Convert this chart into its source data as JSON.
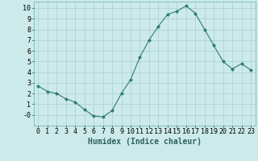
{
  "x": [
    0,
    1,
    2,
    3,
    4,
    5,
    6,
    7,
    8,
    9,
    10,
    11,
    12,
    13,
    14,
    15,
    16,
    17,
    18,
    19,
    20,
    21,
    22,
    23
  ],
  "y": [
    2.7,
    2.2,
    2.0,
    1.5,
    1.2,
    0.5,
    -0.1,
    -0.2,
    0.4,
    2.0,
    3.3,
    5.4,
    7.0,
    8.3,
    9.4,
    9.7,
    10.2,
    9.5,
    8.0,
    6.5,
    5.0,
    4.3,
    4.8,
    4.2
  ],
  "line_color": "#2e7d6e",
  "marker": "D",
  "marker_size": 2,
  "bg_color": "#cceaea",
  "grid_color": "#aacece",
  "xlabel": "Humidex (Indice chaleur)",
  "tick_fontsize": 6,
  "xlabel_fontsize": 7,
  "xlim": [
    -0.5,
    23.5
  ],
  "ylim": [
    -1.0,
    10.6
  ],
  "yticks": [
    0,
    1,
    2,
    3,
    4,
    5,
    6,
    7,
    8,
    9,
    10
  ],
  "ytick_labels": [
    "-0",
    "1",
    "2",
    "3",
    "4",
    "5",
    "6",
    "7",
    "8",
    "9",
    "10"
  ],
  "xticks": [
    0,
    1,
    2,
    3,
    4,
    5,
    6,
    7,
    8,
    9,
    10,
    11,
    12,
    13,
    14,
    15,
    16,
    17,
    18,
    19,
    20,
    21,
    22,
    23
  ]
}
